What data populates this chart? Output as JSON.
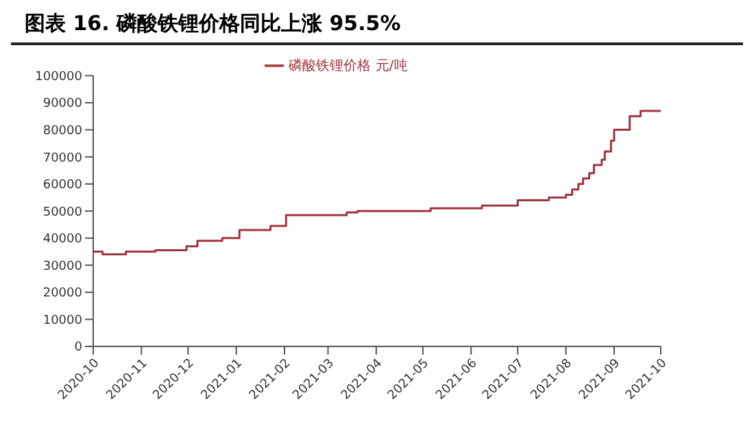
{
  "chart_data": {
    "type": "step",
    "title": "图表 16. 磷酸铁锂价格同比上涨 95.5%",
    "x": [
      "2020-10-01",
      "2020-10-07",
      "2020-10-22",
      "2020-11-10",
      "2020-11-30",
      "2020-12-07",
      "2020-12-23",
      "2021-01-03",
      "2021-01-23",
      "2021-02-02",
      "2021-03-13",
      "2021-03-20",
      "2021-05-06",
      "2021-06-08",
      "2021-07-01",
      "2021-07-21",
      "2021-08-01",
      "2021-08-05",
      "2021-08-09",
      "2021-08-12",
      "2021-08-16",
      "2021-08-19",
      "2021-08-24",
      "2021-08-26",
      "2021-08-30",
      "2021-09-01",
      "2021-09-11",
      "2021-09-18",
      "2021-10-01"
    ],
    "series": [
      {
        "name": "磷酸铁锂价格 元/吨",
        "color": "#a0343f",
        "values": [
          35000,
          34000,
          35000,
          35500,
          37000,
          39000,
          40000,
          43000,
          44500,
          48500,
          49500,
          50000,
          51000,
          52000,
          54000,
          55000,
          56000,
          58000,
          60000,
          62000,
          64000,
          67000,
          69000,
          72000,
          76000,
          80000,
          85000,
          87000,
          87000
        ]
      }
    ],
    "xlim": [
      "2020-10",
      "2021-10"
    ],
    "xticks": [
      "2020-10",
      "2020-11",
      "2020-12",
      "2021-01",
      "2021-02",
      "2021-03",
      "2021-04",
      "2021-05",
      "2021-06",
      "2021-07",
      "2021-08",
      "2021-09",
      "2021-10"
    ],
    "ylim": [
      0,
      100000
    ],
    "yticks": [
      0,
      10000,
      20000,
      30000,
      40000,
      50000,
      60000,
      70000,
      80000,
      90000,
      100000
    ],
    "legend": "top",
    "grid": false
  }
}
